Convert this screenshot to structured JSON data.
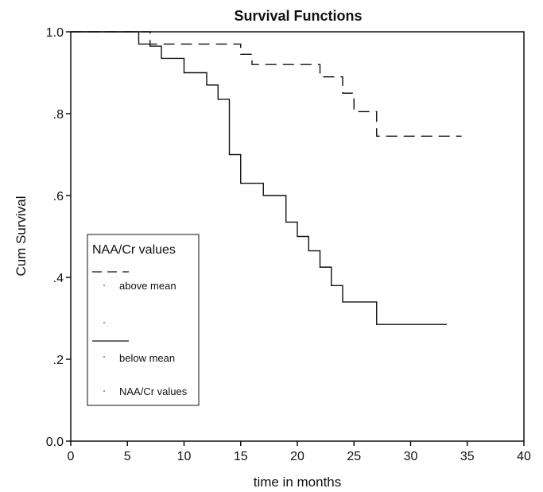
{
  "chart_data": {
    "type": "line",
    "title": "Survival Functions",
    "xlabel": "time in months",
    "ylabel": "Cum Survival",
    "xlim": [
      0,
      40
    ],
    "ylim": [
      0,
      1
    ],
    "xticks": [
      0,
      5,
      10,
      15,
      20,
      25,
      30,
      35,
      40
    ],
    "yticks": [
      0.0,
      0.2,
      0.4,
      0.6,
      0.8,
      1.0
    ],
    "xtick_labels": [
      "0",
      "5",
      "10",
      "15",
      "20",
      "25",
      "30",
      "35",
      "40"
    ],
    "ytick_labels": [
      "0.0",
      ".2",
      ".4",
      ".6",
      ".8",
      "1.0"
    ],
    "grid": false,
    "legend": {
      "title": "NAA/Cr values",
      "placement": "lower-left",
      "entries": [
        "above mean",
        "below mean",
        "NAA/Cr values"
      ]
    },
    "series": [
      {
        "name": "above mean",
        "style": "dashed",
        "x": [
          0,
          7,
          15,
          16,
          22,
          24,
          25,
          27,
          34.5
        ],
        "y": [
          1.0,
          0.97,
          0.945,
          0.92,
          0.89,
          0.85,
          0.805,
          0.745,
          0.745
        ]
      },
      {
        "name": "below mean",
        "style": "solid",
        "x": [
          0,
          6,
          7,
          8,
          10,
          12,
          13,
          14,
          15,
          17,
          19,
          20,
          21,
          22,
          23,
          24,
          27,
          33.2
        ],
        "y": [
          1.0,
          0.97,
          0.965,
          0.935,
          0.9,
          0.87,
          0.835,
          0.7,
          0.63,
          0.6,
          0.535,
          0.5,
          0.465,
          0.425,
          0.38,
          0.34,
          0.285,
          0.285
        ]
      }
    ],
    "colors": {
      "line": "#111111",
      "background": "#ffffff"
    }
  }
}
